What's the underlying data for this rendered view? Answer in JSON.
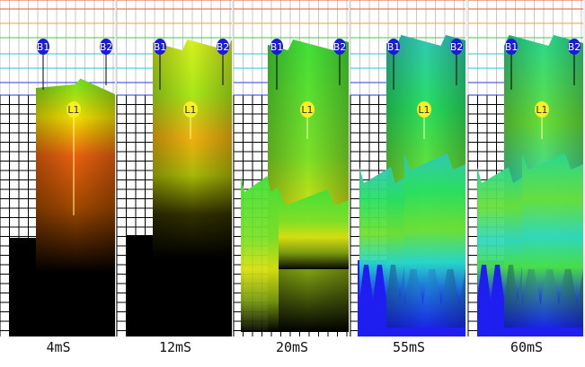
{
  "panels": [
    {
      "time_label": "4mS",
      "front_labels": [
        "B1",
        "B2"
      ],
      "back_label": "L1",
      "palette": "red-yellow-green"
    },
    {
      "time_label": "12mS",
      "front_labels": [
        "B1",
        "B2"
      ],
      "back_label": "L1",
      "palette": "yellow-green"
    },
    {
      "time_label": "20mS",
      "front_labels": [
        "B1",
        "B2"
      ],
      "back_label": "L1",
      "palette": "green-yellow"
    },
    {
      "time_label": "55mS",
      "front_labels": [
        "B1",
        "B2"
      ],
      "back_label": "L1",
      "palette": "green-cyan-blue"
    },
    {
      "time_label": "60mS",
      "front_labels": [
        "B1",
        "B2"
      ],
      "back_label": "L1",
      "palette": "green-cyan-blue"
    }
  ],
  "colors": {
    "grid": "#000000",
    "band_red": "#e8572a",
    "band_orange": "#f2a020",
    "band_green": "#3ccf3c",
    "band_cyan": "#20c8d8",
    "band_blue": "#2a3cd0",
    "marker_blue": "#1a1ad8",
    "marker_yellow": "#f8f020",
    "floor_blue": "#1e1ef0",
    "dark": "#000000"
  }
}
